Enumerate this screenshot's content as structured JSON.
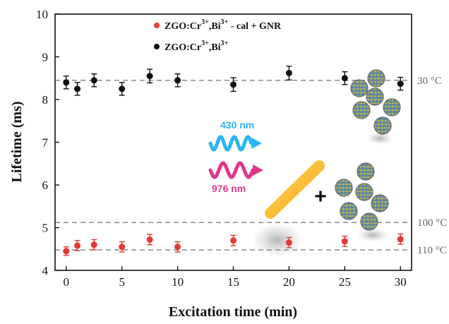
{
  "chart_data": {
    "type": "scatter",
    "xlabel": "Excitation time (min)",
    "ylabel": "Lifetime (ms)",
    "xlim": [
      -1,
      31
    ],
    "ylim": [
      4,
      10
    ],
    "xticks": [
      "0",
      "5",
      "10",
      "15",
      "20",
      "25",
      "30"
    ],
    "yticks": [
      "4",
      "5",
      "6",
      "7",
      "8",
      "9",
      "10"
    ],
    "grid": false,
    "legend_position": "top-center",
    "series": [
      {
        "legend_base": "ZGO:Cr",
        "legend_sup1": "3+",
        "legend_mid": ",Bi",
        "legend_sup2": "3+",
        "legend_tail": " - cal + GNR",
        "color": "#e53935",
        "points": [
          {
            "x": 0,
            "y": 4.45,
            "err": 0.1
          },
          {
            "x": 1,
            "y": 4.58,
            "err": 0.12
          },
          {
            "x": 2.5,
            "y": 4.6,
            "err": 0.12
          },
          {
            "x": 5,
            "y": 4.55,
            "err": 0.12
          },
          {
            "x": 7.5,
            "y": 4.72,
            "err": 0.12
          },
          {
            "x": 10,
            "y": 4.55,
            "err": 0.12
          },
          {
            "x": 15,
            "y": 4.7,
            "err": 0.12
          },
          {
            "x": 20,
            "y": 4.65,
            "err": 0.12
          },
          {
            "x": 25,
            "y": 4.68,
            "err": 0.12
          },
          {
            "x": 30,
            "y": 4.73,
            "err": 0.12
          }
        ]
      },
      {
        "legend_base": "ZGO:Cr",
        "legend_sup1": "3+",
        "legend_mid": ",Bi",
        "legend_sup2": "3+",
        "legend_tail": "",
        "color": "#111111",
        "points": [
          {
            "x": 0,
            "y": 8.4,
            "err": 0.15
          },
          {
            "x": 1,
            "y": 8.25,
            "err": 0.15
          },
          {
            "x": 2.5,
            "y": 8.45,
            "err": 0.15
          },
          {
            "x": 5,
            "y": 8.25,
            "err": 0.15
          },
          {
            "x": 7.5,
            "y": 8.55,
            "err": 0.16
          },
          {
            "x": 10,
            "y": 8.45,
            "err": 0.15
          },
          {
            "x": 15,
            "y": 8.35,
            "err": 0.16
          },
          {
            "x": 20,
            "y": 8.62,
            "err": 0.16
          },
          {
            "x": 25,
            "y": 8.5,
            "err": 0.15
          },
          {
            "x": 30,
            "y": 8.37,
            "err": 0.15
          }
        ]
      }
    ],
    "reference_lines": [
      {
        "y": 8.45,
        "label": "30 °C"
      },
      {
        "y": 5.12,
        "label": "100 °C"
      },
      {
        "y": 4.48,
        "label": "110 °C"
      }
    ],
    "annotations": {
      "wave1_label": "430 nm",
      "wave1_color": "#29b6f6",
      "wave2_label": "976 nm",
      "wave2_color": "#e0368a",
      "plus_sign": "+"
    }
  }
}
